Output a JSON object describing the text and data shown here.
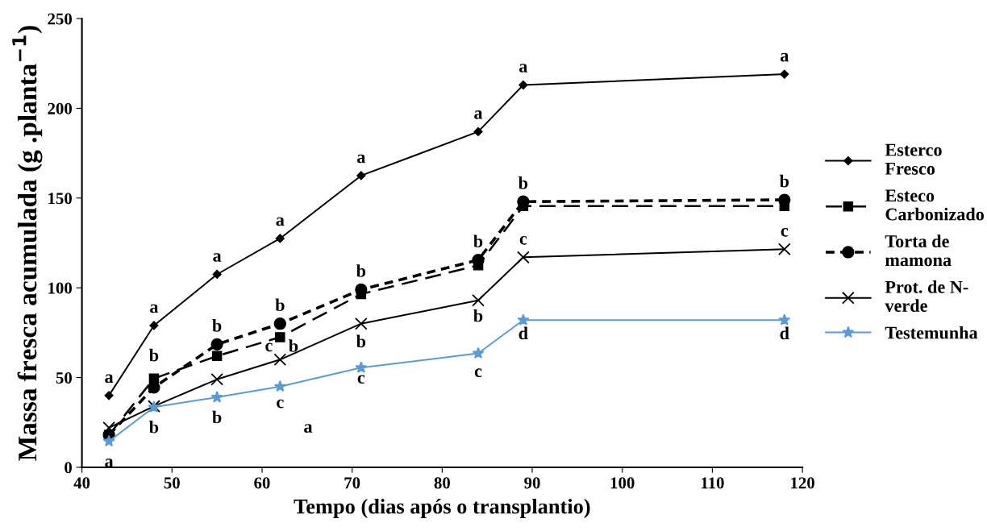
{
  "chart_data": {
    "type": "line",
    "xlabel": "Tempo (dias após o transplantio)",
    "ylabel": "Massa fresca acumulada (g .planta$^{−1}$)",
    "x": [
      43,
      48,
      55,
      62,
      71,
      84,
      89,
      118
    ],
    "xlim": [
      40,
      120
    ],
    "xticks": [
      40,
      50,
      60,
      70,
      80,
      90,
      100,
      110,
      120
    ],
    "ylim": [
      0,
      250
    ],
    "yticks": [
      0,
      50,
      100,
      150,
      200,
      250
    ],
    "grid": false,
    "legend": "right",
    "series": [
      {
        "name": "Esterco\nFresco",
        "color": "#000000",
        "marker": "diamond",
        "line_style": "solid",
        "values": [
          40,
          79,
          107.5,
          127.5,
          162.5,
          187,
          213,
          219
        ]
      },
      {
        "name": "Esteco\nCarbonizado",
        "color": "#000000",
        "marker": "square",
        "line_style": "dashed",
        "values": [
          18,
          49.5,
          62,
          72.5,
          96.5,
          112.5,
          145.5,
          145.5
        ]
      },
      {
        "name": "Torta de\nmamona",
        "color": "#000000",
        "marker": "circle",
        "line_style": "dotted",
        "values": [
          18,
          44.5,
          68.5,
          80,
          99,
          115.5,
          148,
          149
        ]
      },
      {
        "name": "Prot. de N-\nverde",
        "color": "#000000",
        "marker": "cross",
        "line_style": "solid",
        "values": [
          22,
          34,
          49,
          60,
          80,
          93,
          117,
          121.5
        ]
      },
      {
        "name": "Testemunha",
        "color": "#5b9bd5",
        "marker": "star",
        "line_style": "solid",
        "values": [
          14.5,
          33.5,
          39,
          45,
          55.5,
          63.5,
          82,
          82
        ]
      }
    ],
    "annotations": [
      {
        "text": "a",
        "x": 43,
        "y": 40
      },
      {
        "text": "a",
        "x": 48,
        "y": 79
      },
      {
        "text": "a",
        "x": 55,
        "y": 107.5
      },
      {
        "text": "a",
        "x": 62,
        "y": 127.5
      },
      {
        "text": "a",
        "x": 71,
        "y": 162.5
      },
      {
        "text": "a",
        "x": 84,
        "y": 187
      },
      {
        "text": "a",
        "x": 89,
        "y": 213
      },
      {
        "text": "a",
        "x": 118,
        "y": 219
      },
      {
        "text": "b",
        "x": 48,
        "y": 49.5
      },
      {
        "text": "b",
        "x": 55,
        "y": 68.5
      },
      {
        "text": "b",
        "x": 62,
        "y": 80
      },
      {
        "text": "b",
        "x": 71,
        "y": 99
      },
      {
        "text": "b",
        "x": 84,
        "y": 115.5
      },
      {
        "text": "b",
        "x": 89,
        "y": 148
      },
      {
        "text": "b",
        "x": 118,
        "y": 149
      },
      {
        "text": "c",
        "x": 62,
        "y": 60
      },
      {
        "text": "b",
        "x": 62,
        "y": 72.5
      },
      {
        "text": "b",
        "x": 71,
        "y": 80
      },
      {
        "text": "b",
        "x": 84,
        "y": 93
      },
      {
        "text": "c",
        "x": 89,
        "y": 117
      },
      {
        "text": "c",
        "x": 118,
        "y": 121.5
      },
      {
        "text": "a",
        "x": 43,
        "y": 14.5
      },
      {
        "text": "b",
        "x": 48,
        "y": 33.5
      },
      {
        "text": "b",
        "x": 55,
        "y": 39
      },
      {
        "text": "c",
        "x": 62,
        "y": 45
      },
      {
        "text": "a",
        "x": 62,
        "y": 45
      },
      {
        "text": "c",
        "x": 71,
        "y": 55.5
      },
      {
        "text": "c",
        "x": 84,
        "y": 63.5
      },
      {
        "text": "d",
        "x": 89,
        "y": 82
      },
      {
        "text": "d",
        "x": 118,
        "y": 82
      }
    ]
  }
}
